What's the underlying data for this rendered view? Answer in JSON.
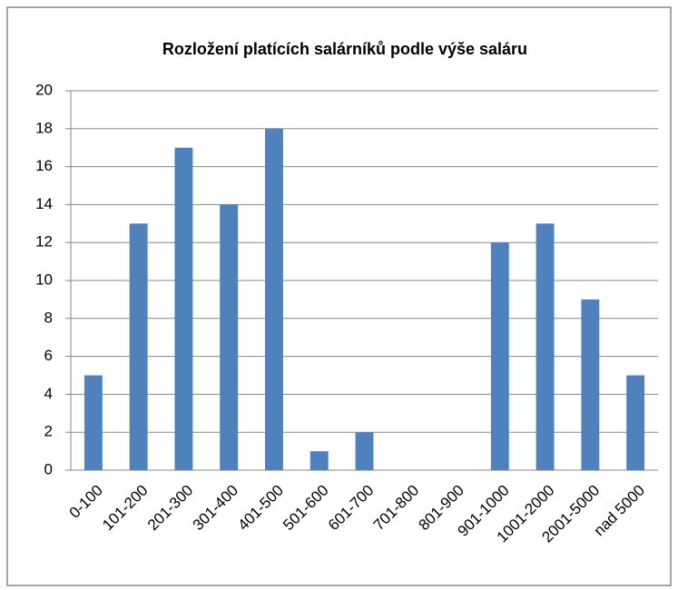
{
  "chart_data": {
    "type": "bar",
    "title": "Rozložení platících salárníků podle výše saláru",
    "categories": [
      "0-100",
      "101-200",
      "201-300",
      "301-400",
      "401-500",
      "501-600",
      "601-700",
      "701-800",
      "801-900",
      "901-1000",
      "1001-2000",
      "2001-5000",
      "nad 5000"
    ],
    "values": [
      5,
      13,
      17,
      14,
      18,
      1,
      2,
      0,
      0,
      12,
      13,
      9,
      5
    ],
    "color": "#4f81bd",
    "ylim": [
      0,
      20
    ],
    "yticks": [
      0,
      2,
      4,
      6,
      8,
      10,
      12,
      14,
      16,
      18,
      20
    ],
    "grid": true
  }
}
